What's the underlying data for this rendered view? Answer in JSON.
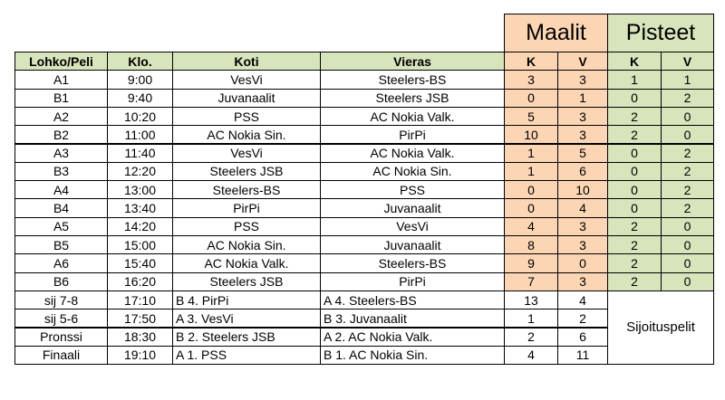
{
  "colors": {
    "header_green": "#d8e4bc",
    "goals_orange": "#fcd5b4",
    "points_green": "#d8e4bc",
    "border": "#000000",
    "background": "#ffffff"
  },
  "group_headers": {
    "goals": "Maalit",
    "points": "Pisteet"
  },
  "columns": {
    "group_game": "Lohko/Peli",
    "time": "Klo.",
    "home": "Koti",
    "away": "Vieras",
    "goals_home": "K",
    "goals_away": "V",
    "points_home": "K",
    "points_away": "V"
  },
  "games": [
    {
      "id": "A1",
      "time": "9:00",
      "home": "VesVi",
      "away": "Steelers-BS",
      "gh": "3",
      "ga": "3",
      "ph": "1",
      "pa": "1"
    },
    {
      "id": "B1",
      "time": "9:40",
      "home": "Juvanaalit",
      "away": "Steelers JSB",
      "gh": "0",
      "ga": "1",
      "ph": "0",
      "pa": "2"
    },
    {
      "id": "A2",
      "time": "10:20",
      "home": "PSS",
      "away": "AC Nokia Valk.",
      "gh": "5",
      "ga": "3",
      "ph": "2",
      "pa": "0"
    },
    {
      "id": "B2",
      "time": "11:00",
      "home": "AC Nokia Sin.",
      "away": "PirPi",
      "gh": "10",
      "ga": "3",
      "ph": "2",
      "pa": "0"
    },
    {
      "id": "A3",
      "time": "11:40",
      "home": "VesVi",
      "away": "AC Nokia Valk.",
      "gh": "1",
      "ga": "5",
      "ph": "0",
      "pa": "2"
    },
    {
      "id": "B3",
      "time": "12:20",
      "home": "Steelers JSB",
      "away": "AC Nokia Sin.",
      "gh": "1",
      "ga": "6",
      "ph": "0",
      "pa": "2"
    },
    {
      "id": "A4",
      "time": "13:00",
      "home": "Steelers-BS",
      "away": "PSS",
      "gh": "0",
      "ga": "10",
      "ph": "0",
      "pa": "2"
    },
    {
      "id": "B4",
      "time": "13:40",
      "home": "PirPi",
      "away": "Juvanaalit",
      "gh": "0",
      "ga": "4",
      "ph": "0",
      "pa": "2"
    },
    {
      "id": "A5",
      "time": "14:20",
      "home": "PSS",
      "away": "VesVi",
      "gh": "4",
      "ga": "3",
      "ph": "2",
      "pa": "0"
    },
    {
      "id": "B5",
      "time": "15:00",
      "home": "AC Nokia Sin.",
      "away": "Juvanaalit",
      "gh": "8",
      "ga": "3",
      "ph": "2",
      "pa": "0"
    },
    {
      "id": "A6",
      "time": "15:40",
      "home": "AC Nokia Valk.",
      "away": "Steelers-BS",
      "gh": "9",
      "ga": "0",
      "ph": "2",
      "pa": "0"
    },
    {
      "id": "B6",
      "time": "16:20",
      "home": "Steelers JSB",
      "away": "PirPi",
      "gh": "7",
      "ga": "3",
      "ph": "2",
      "pa": "0"
    }
  ],
  "placement_games": [
    {
      "id": "sij 7-8",
      "time": "17:10",
      "home": "B 4.  PirPi",
      "away": "A 4.  Steelers-BS",
      "gh": "13",
      "ga": "4"
    },
    {
      "id": "sij 5-6",
      "time": "17:50",
      "home": "A 3.  VesVi",
      "away": "B 3.  Juvanaalit",
      "gh": "1",
      "ga": "2"
    },
    {
      "id": "Pronssi",
      "time": "18:30",
      "home": "B 2.  Steelers JSB",
      "away": "A 2.  AC Nokia Valk.",
      "gh": "2",
      "ga": "6"
    },
    {
      "id": "Finaali",
      "time": "19:10",
      "home": "A 1.  PSS",
      "away": "B 1.  AC Nokia Sin.",
      "gh": "4",
      "ga": "11"
    }
  ],
  "placement_label": "Sijoituspelit"
}
